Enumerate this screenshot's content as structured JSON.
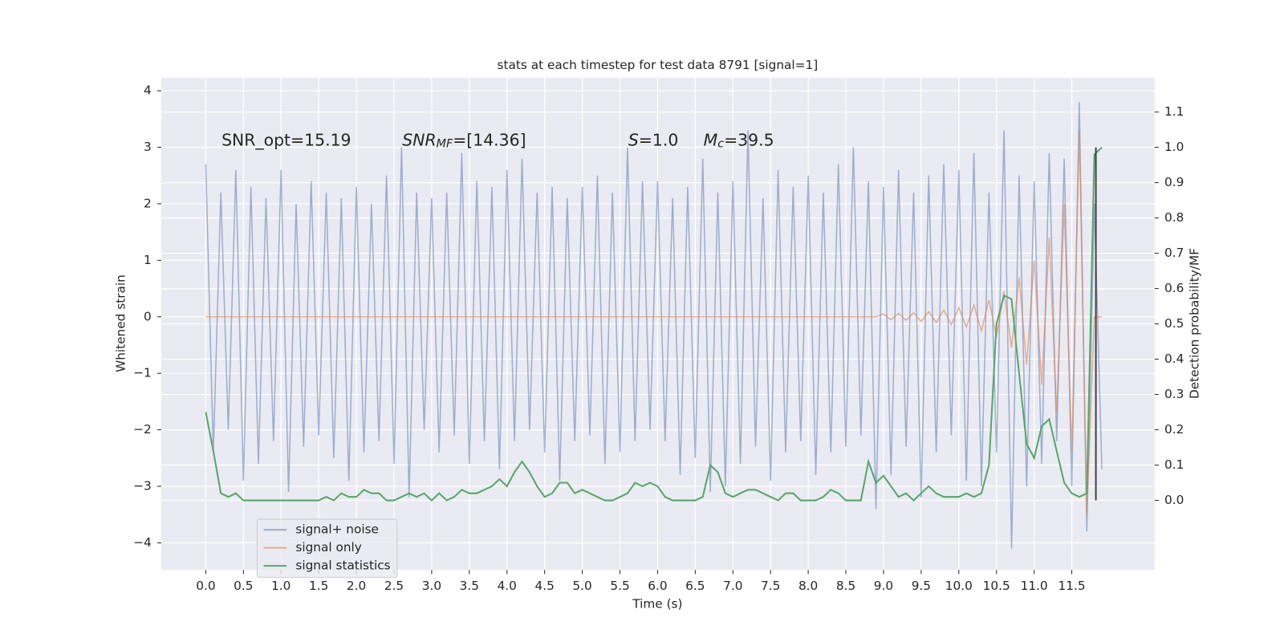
{
  "chart_data": {
    "type": "line",
    "title": "stats at each timestep for test data 8791 [signal=1]",
    "xlabel": "Time (s)",
    "ylabel": "Whitened strain",
    "y2label": "Detection probability/MF",
    "x": [
      0.0,
      0.1,
      0.2,
      0.3,
      0.4,
      0.5,
      0.6,
      0.7,
      0.8,
      0.9,
      1.0,
      1.1,
      1.2,
      1.3,
      1.4,
      1.5,
      1.6,
      1.7,
      1.8,
      1.9,
      2.0,
      2.1,
      2.2,
      2.3,
      2.4,
      2.5,
      2.6,
      2.7,
      2.8,
      2.9,
      3.0,
      3.1,
      3.2,
      3.3,
      3.4,
      3.5,
      3.6,
      3.7,
      3.8,
      3.9,
      4.0,
      4.1,
      4.2,
      4.3,
      4.4,
      4.5,
      4.6,
      4.7,
      4.8,
      4.9,
      5.0,
      5.1,
      5.2,
      5.3,
      5.4,
      5.5,
      5.6,
      5.7,
      5.8,
      5.9,
      6.0,
      6.1,
      6.2,
      6.3,
      6.4,
      6.5,
      6.6,
      6.7,
      6.8,
      6.9,
      7.0,
      7.1,
      7.2,
      7.3,
      7.4,
      7.5,
      7.6,
      7.7,
      7.8,
      7.9,
      8.0,
      8.1,
      8.2,
      8.3,
      8.4,
      8.5,
      8.6,
      8.7,
      8.8,
      8.9,
      9.0,
      9.1,
      9.2,
      9.3,
      9.4,
      9.5,
      9.6,
      9.7,
      9.8,
      9.9,
      10.0,
      10.1,
      10.2,
      10.3,
      10.4,
      10.5,
      10.6,
      10.7,
      10.8,
      10.9,
      11.0,
      11.1,
      11.2,
      11.3,
      11.4,
      11.5,
      11.6,
      11.7,
      11.8,
      11.9
    ],
    "series": [
      {
        "name": "signal+ noise",
        "color": "#4c72b0",
        "opacity": 0.5,
        "values": [
          2.7,
          -2.4,
          2.2,
          -2.0,
          2.6,
          -2.9,
          2.3,
          -2.6,
          2.1,
          -2.2,
          2.6,
          -3.1,
          2.0,
          -2.3,
          2.4,
          -2.1,
          2.2,
          -2.5,
          2.1,
          -2.9,
          2.3,
          -2.4,
          2.0,
          -2.2,
          2.5,
          -2.6,
          3.0,
          -3.2,
          2.2,
          -2.0,
          2.1,
          -2.4,
          2.2,
          -2.1,
          2.9,
          -2.6,
          2.4,
          -2.2,
          2.3,
          -2.7,
          2.6,
          -2.2,
          2.8,
          -2.0,
          2.2,
          -2.4,
          2.3,
          -2.9,
          2.1,
          -2.2,
          2.3,
          -2.1,
          2.5,
          -2.6,
          2.2,
          -2.4,
          3.0,
          -2.2,
          2.4,
          -2.0,
          2.4,
          -2.2,
          2.1,
          -2.8,
          2.3,
          -2.5,
          2.8,
          -3.1,
          2.2,
          -3.0,
          2.4,
          -2.6,
          3.3,
          -2.3,
          2.1,
          -2.9,
          2.6,
          -2.4,
          2.3,
          -2.2,
          2.5,
          -2.8,
          2.2,
          -2.4,
          2.7,
          -2.3,
          3.0,
          -2.1,
          2.4,
          -3.4,
          2.3,
          -2.8,
          2.6,
          -2.3,
          2.2,
          -3.2,
          2.5,
          -2.4,
          2.7,
          -2.1,
          2.6,
          -2.9,
          2.9,
          -3.0,
          2.2,
          -2.4,
          3.3,
          -4.1,
          2.5,
          -3.0,
          2.4,
          -2.6,
          2.9,
          -2.2,
          2.8,
          -3.0,
          3.8,
          -3.8,
          2.0,
          -2.7
        ]
      },
      {
        "name": "signal only",
        "color": "#dd8452",
        "opacity": 0.6,
        "values": [
          0,
          0,
          0,
          0,
          0,
          0,
          0,
          0,
          0,
          0,
          0,
          0,
          0,
          0,
          0,
          0,
          0,
          0,
          0,
          0,
          0,
          0,
          0,
          0,
          0,
          0,
          0,
          0,
          0,
          0,
          0,
          0,
          0,
          0,
          0,
          0,
          0,
          0,
          0,
          0,
          0,
          0,
          0,
          0,
          0,
          0,
          0,
          0,
          0,
          0,
          0,
          0,
          0,
          0,
          0,
          0,
          0,
          0,
          0,
          0,
          0,
          0,
          0,
          0,
          0,
          0,
          0,
          0,
          0,
          0,
          0,
          0,
          0,
          0,
          0,
          0,
          0,
          0,
          0,
          0,
          0,
          0,
          0,
          0,
          0,
          0,
          0,
          0,
          0,
          0,
          0.05,
          -0.05,
          0.06,
          -0.06,
          0.07,
          -0.08,
          0.09,
          -0.1,
          0.12,
          -0.14,
          0.16,
          -0.18,
          0.21,
          -0.25,
          0.3,
          -0.36,
          0.45,
          -0.55,
          0.7,
          -0.85,
          1.0,
          -1.2,
          1.4,
          -1.7,
          2.0,
          -2.4,
          3.3,
          -3.5,
          0.0,
          0.0
        ]
      },
      {
        "name": "signal statistics",
        "color": "#55a868",
        "opacity": 1,
        "axis": "y2",
        "values": [
          0.25,
          0.14,
          0.02,
          0.01,
          0.02,
          0.0,
          0.0,
          0.0,
          0.0,
          0.0,
          0.0,
          0.0,
          0.0,
          0.0,
          0.0,
          0.0,
          0.01,
          0.0,
          0.02,
          0.01,
          0.01,
          0.03,
          0.02,
          0.02,
          0.0,
          0.0,
          0.01,
          0.02,
          0.01,
          0.02,
          0.0,
          0.02,
          0.0,
          0.01,
          0.03,
          0.02,
          0.02,
          0.03,
          0.04,
          0.06,
          0.04,
          0.08,
          0.11,
          0.08,
          0.04,
          0.01,
          0.02,
          0.05,
          0.05,
          0.02,
          0.03,
          0.02,
          0.01,
          0.0,
          0.0,
          0.01,
          0.02,
          0.05,
          0.04,
          0.05,
          0.04,
          0.01,
          0.0,
          0.0,
          0.0,
          0.0,
          0.01,
          0.1,
          0.08,
          0.02,
          0.01,
          0.02,
          0.03,
          0.03,
          0.02,
          0.01,
          0.0,
          0.02,
          0.02,
          0.0,
          0.0,
          0.0,
          0.01,
          0.03,
          0.02,
          0.0,
          0.0,
          0.0,
          0.11,
          0.05,
          0.07,
          0.04,
          0.01,
          0.02,
          0.0,
          0.02,
          0.04,
          0.02,
          0.01,
          0.01,
          0.01,
          0.02,
          0.01,
          0.02,
          0.1,
          0.5,
          0.58,
          0.57,
          0.36,
          0.16,
          0.12,
          0.21,
          0.23,
          0.14,
          0.05,
          0.02,
          0.01,
          0.02,
          0.98,
          1.0
        ]
      }
    ],
    "vlines": [
      {
        "x": 11.82,
        "ymin": 0,
        "ymax": 1,
        "axis": "y2",
        "color": "#444444"
      }
    ],
    "annotations": [
      {
        "x": 0.21,
        "y": 3.0,
        "parts": [
          "SNR_opt=15.19"
        ]
      },
      {
        "x": 2.61,
        "y": 3.0,
        "parts": [
          "SNR",
          "MF",
          "=[14.36]"
        ]
      },
      {
        "x": 5.61,
        "y": 3.0,
        "parts": [
          "S",
          "=1.0"
        ]
      },
      {
        "x": 6.61,
        "y": 3.0,
        "parts": [
          "M",
          "c",
          "=39.5"
        ]
      }
    ],
    "xlim": [
      -0.59,
      12.6
    ],
    "ylim": [
      -4.48,
      4.23
    ],
    "y2lim": [
      -0.197,
      1.197
    ],
    "xticks": [
      {
        "value": 0,
        "label": "0.0"
      },
      0.5,
      {
        "value": 1,
        "label": "1.0"
      },
      1.5,
      {
        "value": 2,
        "label": "2.0"
      },
      2.5,
      {
        "value": 3,
        "label": "3.0"
      },
      3.5,
      {
        "value": 4,
        "label": "4.0"
      },
      4.5,
      {
        "value": 5,
        "label": "5.0"
      },
      5.5,
      {
        "value": 6,
        "label": "6.0"
      },
      6.5,
      {
        "value": 7,
        "label": "7.0"
      },
      7.5,
      {
        "value": 8,
        "label": "8.0"
      },
      8.5,
      {
        "value": 9,
        "label": "9.0"
      },
      9.5,
      {
        "value": 10,
        "label": "10.0"
      },
      10.5,
      {
        "value": 11,
        "label": "11.0"
      },
      11.5
    ],
    "yticks": [
      {
        "value": -4,
        "label": "−4"
      },
      {
        "value": -3,
        "label": "−3"
      },
      {
        "value": -2,
        "label": "−2"
      },
      {
        "value": -1,
        "label": "−1"
      },
      0,
      1,
      2,
      3,
      4
    ],
    "y2ticks": [
      {
        "value": 0,
        "label": "0.0"
      },
      0.1,
      0.2,
      0.3,
      0.4,
      0.5,
      0.6,
      0.7,
      0.8,
      0.9,
      {
        "value": 1,
        "label": "1.0"
      },
      1.1
    ],
    "grid": true,
    "legend": "lower left"
  }
}
